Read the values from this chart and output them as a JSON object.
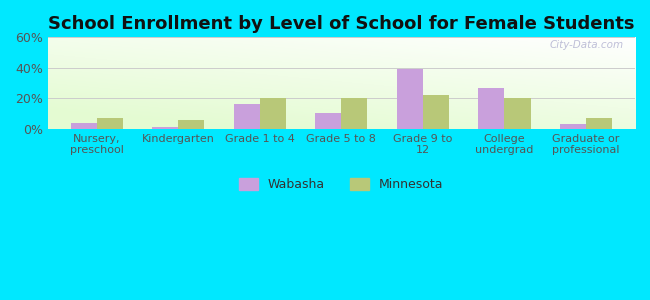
{
  "title": "School Enrollment by Level of School for Female Students",
  "categories": [
    "Nursery,\npreschool",
    "Kindergarten",
    "Grade 1 to 4",
    "Grade 5 to 8",
    "Grade 9 to\n12",
    "College\nundergrad",
    "Graduate or\nprofessional"
  ],
  "wabasha": [
    4,
    1,
    16,
    10,
    39,
    27,
    3
  ],
  "minnesota": [
    7,
    6,
    20,
    20,
    22,
    20,
    7
  ],
  "wabasha_color": "#c9a0dc",
  "minnesota_color": "#b8c878",
  "background_outer": "#00e8ff",
  "ylim": [
    0,
    60
  ],
  "yticks": [
    0,
    20,
    40,
    60
  ],
  "ytick_labels": [
    "0%",
    "20%",
    "40%",
    "60%"
  ],
  "grid_color": "#cccccc",
  "title_fontsize": 13,
  "legend_labels": [
    "Wabasha",
    "Minnesota"
  ],
  "bar_width": 0.32
}
